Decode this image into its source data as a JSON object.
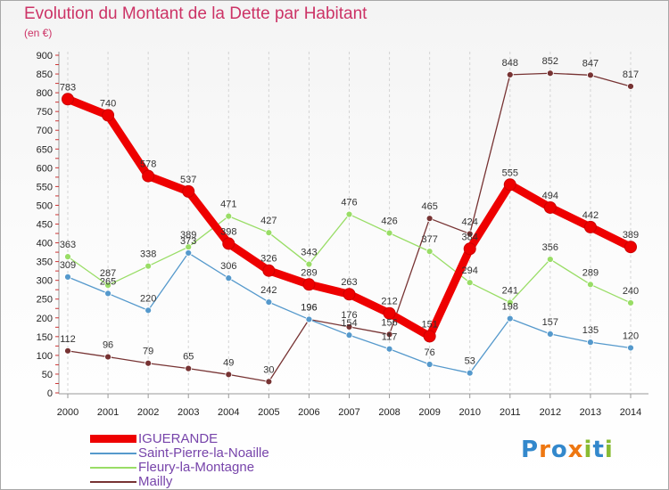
{
  "header": {
    "title": "Evolution du Montant de la Dette par Habitant",
    "subtitle": "(en €)"
  },
  "chart_data": {
    "type": "line",
    "title": "Evolution du Montant de la Dette par Habitant",
    "subtitle": "(en €)",
    "ylim": [
      0,
      900
    ],
    "yticks": [
      0,
      50,
      100,
      150,
      200,
      250,
      300,
      350,
      400,
      450,
      500,
      550,
      600,
      650,
      700,
      750,
      800,
      850,
      900
    ],
    "categories": [
      "2000",
      "2001",
      "2002",
      "2003",
      "2004",
      "2005",
      "2006",
      "2007",
      "2008",
      "2009",
      "2010",
      "2011",
      "2012",
      "2013",
      "2014"
    ],
    "grid": "vertical dashed",
    "legend_position": "bottom-left",
    "series": [
      {
        "name": "IGUERANDE",
        "color": "#ee0000",
        "values": [
          783,
          740,
          578,
          537,
          398,
          326,
          289,
          263,
          212,
          151,
          384,
          555,
          494,
          442,
          389
        ],
        "labels": [
          "783",
          "740",
          "578",
          "537",
          "398",
          "326",
          "289",
          "263",
          "212",
          "151",
          "384",
          "555",
          "494",
          "442",
          "389"
        ]
      },
      {
        "name": "Saint-Pierre-la-Noaille",
        "color": "#5599cc",
        "values": [
          309,
          265,
          220,
          373,
          306,
          242,
          196,
          154,
          117,
          76,
          53,
          198,
          157,
          135,
          120
        ],
        "labels": [
          "309",
          "265",
          "220",
          "373",
          "306",
          "242",
          "196",
          "154",
          "117",
          "76",
          "53",
          "198",
          "157",
          "135",
          "120"
        ]
      },
      {
        "name": "Fleury-la-Montagne",
        "color": "#99dd66",
        "values": [
          363,
          287,
          338,
          389,
          471,
          427,
          343,
          476,
          426,
          377,
          294,
          241,
          356,
          289,
          240
        ],
        "labels": [
          "363",
          "287",
          "338",
          "389",
          "471",
          "427",
          "343",
          "476",
          "426",
          "377",
          "294",
          "241",
          "356",
          "289",
          "240"
        ]
      },
      {
        "name": "Mailly",
        "color": "#773333",
        "values": [
          112,
          96,
          79,
          65,
          49,
          30,
          196,
          176,
          156,
          465,
          424,
          848,
          852,
          847,
          817
        ],
        "labels": [
          "112",
          "96",
          "79",
          "65",
          "49",
          "30",
          "196",
          "176",
          "156",
          "465",
          "424",
          "848",
          "852",
          "847",
          "817"
        ]
      }
    ]
  },
  "logo": {
    "text": "Proxiti",
    "letters": [
      "P",
      "r",
      "o",
      "x",
      "i",
      "t",
      "i"
    ],
    "colors": [
      "#3388cc",
      "#ee7711",
      "#3388cc",
      "#ee7711",
      "#88bb33",
      "#3388cc",
      "#88bb33"
    ]
  }
}
